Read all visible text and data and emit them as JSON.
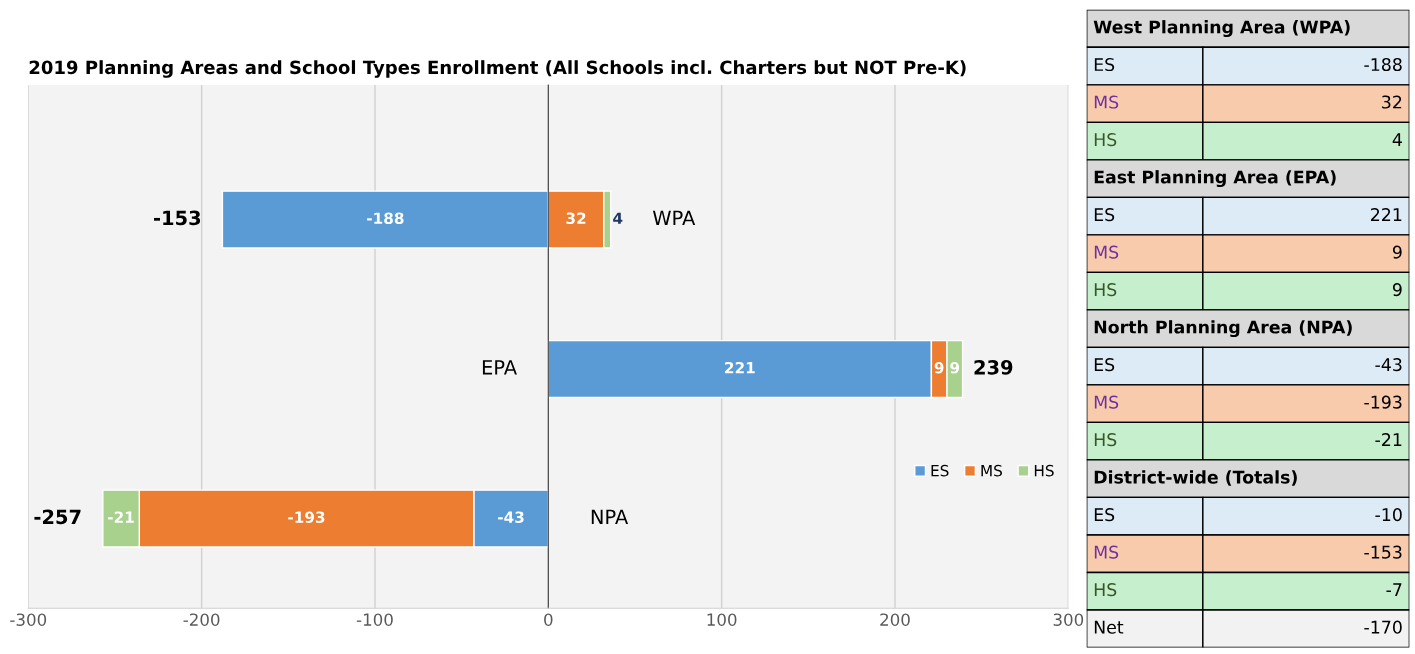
{
  "chart_data": [
    {
      "type": "bar",
      "orientation": "horizontal",
      "stacked": true,
      "title": "2019 Planning Areas and School Types Enrollment (All Schools incl. Charters but NOT Pre-K)",
      "categories": [
        "WPA",
        "EPA",
        "NPA"
      ],
      "series": [
        {
          "name": "ES",
          "color": "#5b9bd5",
          "values": [
            -188,
            221,
            -43
          ]
        },
        {
          "name": "MS",
          "color": "#ed7d31",
          "values": [
            32,
            9,
            -193
          ]
        },
        {
          "name": "HS",
          "color": "#a9d18e",
          "values": [
            4,
            9,
            -21
          ]
        }
      ],
      "totals": [
        "-153",
        "239",
        "-257"
      ],
      "data_labels": true,
      "xlim": [
        -300,
        300
      ],
      "xticks": [
        -300,
        -200,
        -100,
        0,
        100,
        200,
        300
      ],
      "grid": "x",
      "legend": "bottom right"
    },
    {
      "type": "other",
      "annotations": [
        "West Planning Area (WPA)",
        "ES",
        "-188",
        "MS",
        "32",
        "HS",
        "4",
        "East Planning Area (EPA)",
        "ES",
        "221",
        "MS",
        "9",
        "HS",
        "9",
        "North Planning Area (NPA)",
        "ES",
        "-43",
        "MS",
        "-193",
        "HS",
        "-21",
        "District-wide (Totals)",
        "ES",
        "-10",
        "MS",
        "-153",
        "HS",
        "-7",
        "Net",
        "-170"
      ]
    }
  ]
}
